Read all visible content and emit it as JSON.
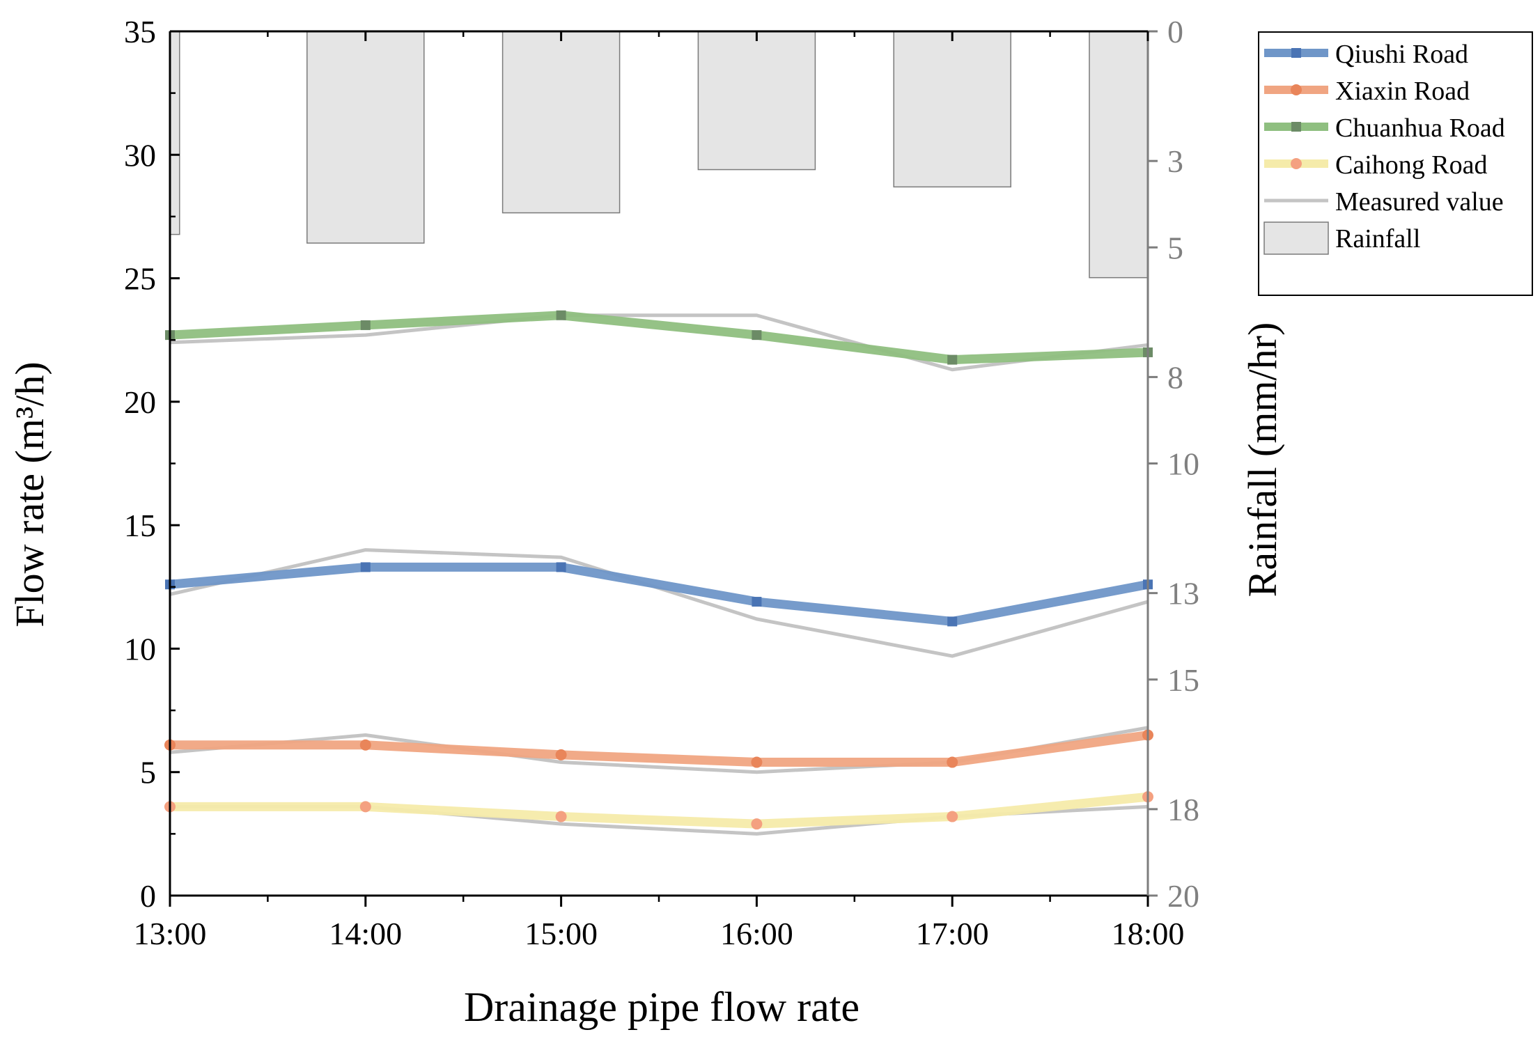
{
  "chart_data": {
    "type": "line",
    "xlabel": "Drainage pipe flow rate",
    "ylabel": "Flow rate (m³/h)",
    "y2label": "Rainfall (mm/hr)",
    "categories": [
      "13:00",
      "14:00",
      "15:00",
      "16:00",
      "17:00",
      "18:00"
    ],
    "ylim": [
      0,
      35
    ],
    "yticks": [
      "0",
      "5",
      "10",
      "15",
      "20",
      "25",
      "30",
      "35"
    ],
    "y2lim": [
      0,
      20
    ],
    "y2ticks": [
      "0",
      "3",
      "5",
      "8",
      "10",
      "13",
      "15",
      "18",
      "20"
    ],
    "legend_position": "top-right, outside plot",
    "series": [
      {
        "name": "Qiushi Road",
        "color": "#6f96c8",
        "marker_color": "#4a74b4",
        "marker": "square",
        "values": [
          12.6,
          13.3,
          13.3,
          11.9,
          11.1,
          12.6
        ],
        "measured": [
          12.2,
          14.0,
          13.7,
          11.2,
          9.7,
          11.9
        ]
      },
      {
        "name": "Xiaxin Road",
        "color": "#f0a582",
        "marker_color": "#e9855a",
        "marker": "circle",
        "values": [
          6.1,
          6.1,
          5.7,
          5.4,
          5.4,
          6.5
        ],
        "measured": [
          5.8,
          6.5,
          5.4,
          5.0,
          5.4,
          6.8
        ]
      },
      {
        "name": "Chuanhua Road",
        "color": "#8fbf80",
        "marker_color": "#6c8b66",
        "marker": "square",
        "values": [
          22.7,
          23.1,
          23.5,
          22.7,
          21.7,
          22.0
        ],
        "measured": [
          22.4,
          22.7,
          23.5,
          23.5,
          21.3,
          22.3
        ]
      },
      {
        "name": "Caihong Road",
        "color": "#f5ebaa",
        "marker_color": "#f4a080",
        "marker": "circle",
        "values": [
          3.6,
          3.6,
          3.2,
          2.9,
          3.2,
          4.0
        ],
        "measured": [
          3.6,
          3.6,
          2.9,
          2.5,
          3.2,
          3.6
        ]
      }
    ],
    "measured_series": {
      "name": "Measured value",
      "color": "#c4c4c4"
    },
    "rainfall": {
      "name": "Rainfall",
      "color": "#e5e5e5",
      "x": [
        "12:45",
        "14:00",
        "15:00",
        "16:00",
        "17:00",
        "18:00"
      ],
      "values": [
        4.7,
        4.9,
        4.2,
        3.2,
        3.6,
        5.7
      ]
    }
  }
}
